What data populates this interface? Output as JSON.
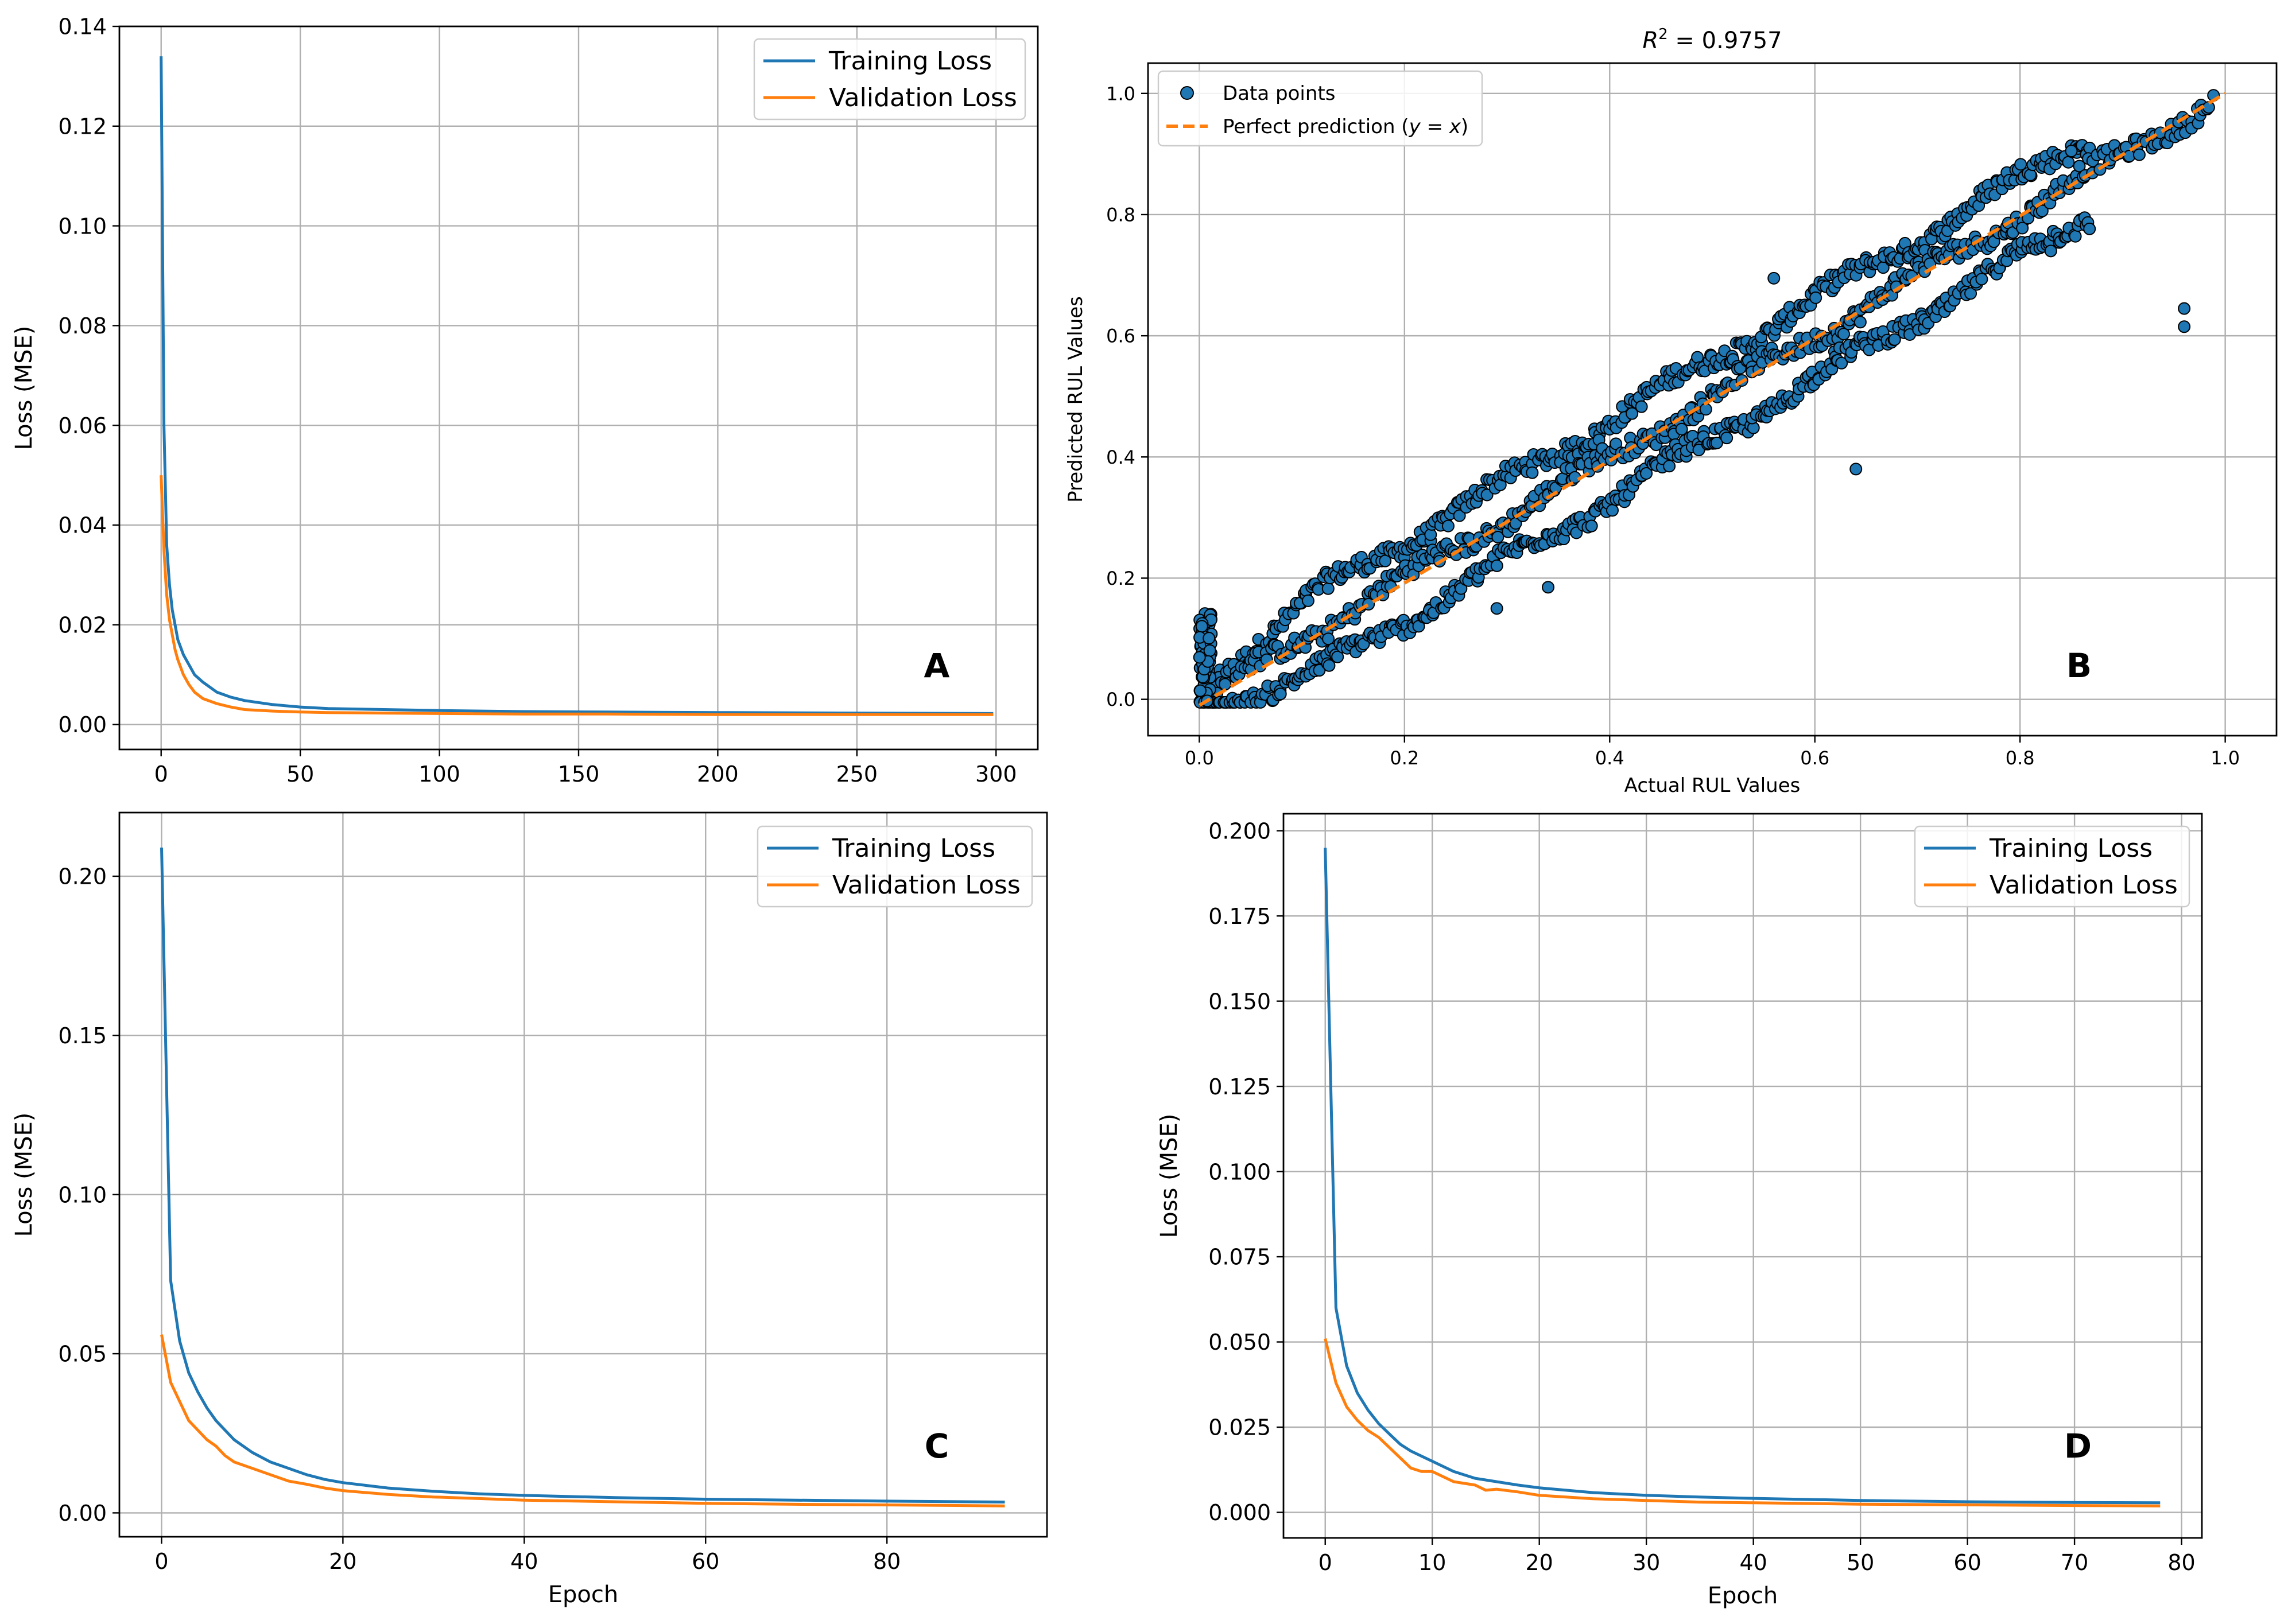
{
  "colors": {
    "training": "#1f77b4",
    "validation": "#ff7f0e",
    "grid": "#b0b0b0",
    "scatter_fill": "#1f77b4",
    "scatter_edge": "#000000"
  },
  "chart_data": [
    {
      "id": "A",
      "type": "line",
      "panel_label": "A",
      "title": "",
      "xlabel": "",
      "ylabel": "Loss (MSE)",
      "xlim": [
        -15,
        315
      ],
      "ylim": [
        -0.005,
        0.14
      ],
      "xticks": [
        0,
        50,
        100,
        150,
        200,
        250,
        300
      ],
      "xtick_labels": [
        "0",
        "50",
        "100",
        "150",
        "200",
        "250",
        "300"
      ],
      "yticks": [
        0,
        0.02,
        0.04,
        0.06,
        0.08,
        0.1,
        0.12,
        0.14
      ],
      "ytick_labels": [
        "0.00",
        "0.02",
        "0.04",
        "0.06",
        "0.08",
        "0.10",
        "0.12",
        "0.14"
      ],
      "grid": true,
      "legend_position": "top-right",
      "series": [
        {
          "name": "Training Loss",
          "color": "#1f77b4",
          "x": [
            0,
            1,
            2,
            3,
            4,
            5,
            6,
            8,
            10,
            12,
            15,
            20,
            25,
            30,
            40,
            50,
            60,
            80,
            100,
            130,
            160,
            200,
            250,
            299
          ],
          "y": [
            0.134,
            0.06,
            0.036,
            0.028,
            0.023,
            0.02,
            0.017,
            0.014,
            0.012,
            0.01,
            0.0085,
            0.0065,
            0.0055,
            0.0048,
            0.004,
            0.0035,
            0.0032,
            0.003,
            0.0028,
            0.0026,
            0.0025,
            0.0024,
            0.0023,
            0.0022
          ]
        },
        {
          "name": "Validation Loss",
          "color": "#ff7f0e",
          "x": [
            0,
            1,
            2,
            3,
            4,
            5,
            6,
            8,
            10,
            12,
            15,
            20,
            25,
            30,
            40,
            50,
            60,
            80,
            100,
            130,
            160,
            200,
            250,
            299
          ],
          "y": [
            0.05,
            0.035,
            0.026,
            0.021,
            0.018,
            0.015,
            0.013,
            0.01,
            0.008,
            0.0065,
            0.0052,
            0.0042,
            0.0035,
            0.003,
            0.0027,
            0.0025,
            0.0024,
            0.0023,
            0.0022,
            0.0021,
            0.0021,
            0.002,
            0.002,
            0.002
          ]
        }
      ]
    },
    {
      "id": "B",
      "type": "scatter",
      "panel_label": "B",
      "title": "R² = 0.9757",
      "title_prefix": "R",
      "title_sup": "2",
      "title_suffix": " = 0.9757",
      "xlabel": "Actual RUL Values",
      "ylabel": "Predicted RUL Values",
      "xlim": [
        -0.05,
        1.05
      ],
      "ylim": [
        -0.06,
        1.05
      ],
      "xticks": [
        0,
        0.2,
        0.4,
        0.6,
        0.8,
        1.0
      ],
      "xtick_labels": [
        "0.0",
        "0.2",
        "0.4",
        "0.6",
        "0.8",
        "1.0"
      ],
      "yticks": [
        0,
        0.2,
        0.4,
        0.6,
        0.8,
        1.0
      ],
      "ytick_labels": [
        "0.0",
        "0.2",
        "0.4",
        "0.6",
        "0.8",
        "1.0"
      ],
      "grid": true,
      "legend_position": "top-left",
      "legend": {
        "points": "Data points",
        "line_prefix": "Perfect prediction (",
        "line_math": "y = x",
        "line_suffix": ")"
      },
      "bands": [
        {
          "x0": 0.0,
          "x1": 0.87,
          "offset": 0.06
        },
        {
          "x0": 0.0,
          "x1": 0.99,
          "offset": 0.0
        },
        {
          "x0": 0.0,
          "x1": 0.87,
          "offset": -0.07
        }
      ],
      "outliers": [
        [
          0.56,
          0.695
        ],
        [
          0.64,
          0.38
        ],
        [
          0.34,
          0.185
        ],
        [
          0.96,
          0.645
        ],
        [
          0.96,
          0.615
        ],
        [
          0.83,
          0.74
        ],
        [
          0.85,
          0.905
        ],
        [
          0.29,
          0.15
        ]
      ]
    },
    {
      "id": "C",
      "type": "line",
      "panel_label": "C",
      "title": "",
      "xlabel": "Epoch",
      "ylabel": "Loss (MSE)",
      "xlim": [
        -4.65,
        97.65
      ],
      "ylim": [
        -0.0075,
        0.22
      ],
      "xticks": [
        0,
        20,
        40,
        60,
        80
      ],
      "xtick_labels": [
        "0",
        "20",
        "40",
        "60",
        "80"
      ],
      "yticks": [
        0,
        0.05,
        0.1,
        0.15,
        0.2
      ],
      "ytick_labels": [
        "0.00",
        "0.05",
        "0.10",
        "0.15",
        "0.20"
      ],
      "grid": true,
      "legend_position": "top-right",
      "series": [
        {
          "name": "Training Loss",
          "color": "#1f77b4",
          "x": [
            0,
            1,
            2,
            3,
            4,
            5,
            6,
            7,
            8,
            10,
            12,
            14,
            16,
            18,
            20,
            25,
            30,
            35,
            40,
            50,
            60,
            70,
            80,
            93
          ],
          "y": [
            0.209,
            0.073,
            0.054,
            0.044,
            0.038,
            0.033,
            0.029,
            0.026,
            0.023,
            0.019,
            0.016,
            0.014,
            0.012,
            0.0105,
            0.0095,
            0.0078,
            0.0068,
            0.006,
            0.0055,
            0.0048,
            0.0043,
            0.004,
            0.0037,
            0.0034
          ]
        },
        {
          "name": "Validation Loss",
          "color": "#ff7f0e",
          "x": [
            0,
            1,
            2,
            3,
            4,
            5,
            6,
            7,
            8,
            10,
            12,
            14,
            16,
            18,
            20,
            25,
            30,
            35,
            40,
            50,
            60,
            70,
            80,
            93
          ],
          "y": [
            0.056,
            0.041,
            0.035,
            0.029,
            0.026,
            0.023,
            0.021,
            0.018,
            0.016,
            0.014,
            0.012,
            0.01,
            0.009,
            0.0078,
            0.007,
            0.0058,
            0.005,
            0.0045,
            0.004,
            0.0035,
            0.003,
            0.0027,
            0.0025,
            0.0022
          ]
        }
      ]
    },
    {
      "id": "D",
      "type": "line",
      "panel_label": "D",
      "title": "",
      "xlabel": "Epoch",
      "ylabel": "Loss (MSE)",
      "xlim": [
        -3.9,
        81.9
      ],
      "ylim": [
        -0.0075,
        0.205
      ],
      "xticks": [
        0,
        10,
        20,
        30,
        40,
        50,
        60,
        70,
        80
      ],
      "xtick_labels": [
        "0",
        "10",
        "20",
        "30",
        "40",
        "50",
        "60",
        "70",
        "80"
      ],
      "yticks": [
        0,
        0.025,
        0.05,
        0.075,
        0.1,
        0.125,
        0.15,
        0.175,
        0.2
      ],
      "ytick_labels": [
        "0.000",
        "0.025",
        "0.050",
        "0.075",
        "0.100",
        "0.125",
        "0.150",
        "0.175",
        "0.200"
      ],
      "grid": true,
      "legend_position": "top-right",
      "series": [
        {
          "name": "Training Loss",
          "color": "#1f77b4",
          "x": [
            0,
            1,
            2,
            3,
            4,
            5,
            6,
            7,
            8,
            10,
            12,
            14,
            16,
            18,
            20,
            25,
            30,
            35,
            40,
            50,
            60,
            70,
            78
          ],
          "y": [
            0.195,
            0.06,
            0.043,
            0.035,
            0.03,
            0.026,
            0.023,
            0.02,
            0.018,
            0.015,
            0.012,
            0.01,
            0.009,
            0.008,
            0.0072,
            0.0058,
            0.005,
            0.0045,
            0.0041,
            0.0035,
            0.0031,
            0.0029,
            0.0028
          ]
        },
        {
          "name": "Validation Loss",
          "color": "#ff7f0e",
          "x": [
            0,
            1,
            2,
            3,
            4,
            5,
            6,
            7,
            8,
            9,
            10,
            12,
            14,
            15,
            16,
            18,
            20,
            25,
            30,
            35,
            40,
            50,
            60,
            70,
            78
          ],
          "y": [
            0.051,
            0.038,
            0.031,
            0.027,
            0.024,
            0.022,
            0.019,
            0.016,
            0.013,
            0.012,
            0.012,
            0.009,
            0.008,
            0.0065,
            0.0068,
            0.006,
            0.005,
            0.004,
            0.0035,
            0.003,
            0.0028,
            0.0024,
            0.0022,
            0.002,
            0.0019
          ]
        }
      ]
    }
  ]
}
